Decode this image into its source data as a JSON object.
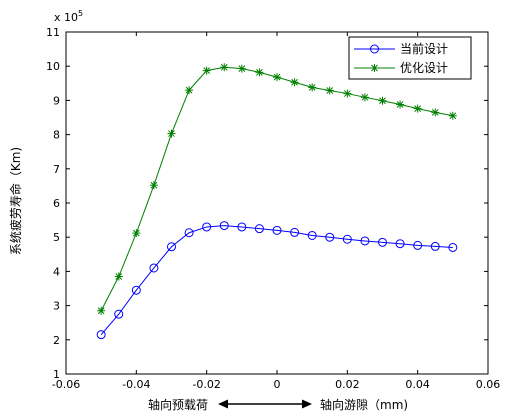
{
  "chart_data": {
    "type": "line",
    "title": "",
    "ylabel": "系统疲劳寿命（Km)",
    "xlabel": {
      "left": "轴向预载荷",
      "right": "轴向游隙（mm)"
    },
    "y_multiplier": "x 10",
    "y_multiplier_exp": "5",
    "xlim": [
      -0.06,
      0.06
    ],
    "ylim": [
      1,
      11
    ],
    "xticks": [
      -0.06,
      -0.04,
      -0.02,
      0,
      0.02,
      0.04,
      0.06
    ],
    "xtick_labels": [
      "-0.06",
      "-0.04",
      "-0.02",
      "0",
      "0.02",
      "0.04",
      "0.06"
    ],
    "yticks": [
      1,
      2,
      3,
      4,
      5,
      6,
      7,
      8,
      9,
      10,
      11
    ],
    "ytick_labels": [
      "1",
      "2",
      "3",
      "4",
      "5",
      "6",
      "7",
      "8",
      "9",
      "10",
      "11"
    ],
    "grid": false,
    "legend_position": "top-right",
    "series": [
      {
        "name": "当前设计",
        "color": "#0000ff",
        "marker": "circle",
        "x": [
          -0.05,
          -0.045,
          -0.04,
          -0.035,
          -0.03,
          -0.025,
          -0.02,
          -0.015,
          -0.01,
          -0.005,
          0,
          0.005,
          0.01,
          0.015,
          0.02,
          0.025,
          0.03,
          0.035,
          0.04,
          0.045,
          0.05
        ],
        "y": [
          2.15,
          2.75,
          3.45,
          4.1,
          4.72,
          5.13,
          5.3,
          5.34,
          5.3,
          5.25,
          5.2,
          5.14,
          5.05,
          5.0,
          4.94,
          4.89,
          4.85,
          4.81,
          4.76,
          4.73,
          4.7
        ]
      },
      {
        "name": "优化设计",
        "color": "#008000",
        "marker": "star",
        "x": [
          -0.05,
          -0.045,
          -0.04,
          -0.035,
          -0.03,
          -0.025,
          -0.02,
          -0.015,
          -0.01,
          -0.005,
          0,
          0.005,
          0.01,
          0.015,
          0.02,
          0.025,
          0.03,
          0.035,
          0.04,
          0.045,
          0.05
        ],
        "y": [
          2.85,
          3.85,
          5.12,
          6.52,
          8.03,
          9.3,
          9.87,
          9.97,
          9.93,
          9.82,
          9.68,
          9.53,
          9.38,
          9.29,
          9.2,
          9.09,
          8.99,
          8.88,
          8.76,
          8.65,
          8.55
        ]
      }
    ]
  }
}
